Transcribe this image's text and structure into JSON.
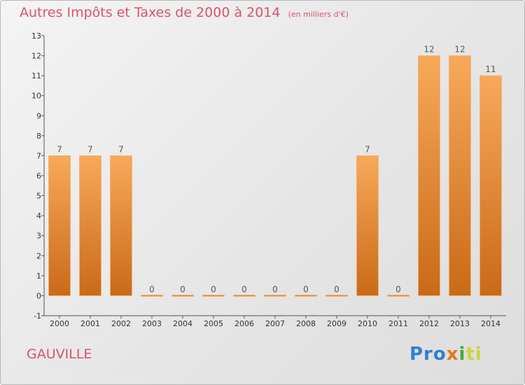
{
  "chart_data": {
    "type": "bar",
    "title": "Autres Impôts et Taxes de 2000 à 2014",
    "subtitle": "(en milliers d'€)",
    "categories": [
      "2000",
      "2001",
      "2002",
      "2003",
      "2004",
      "2005",
      "2006",
      "2007",
      "2008",
      "2009",
      "2010",
      "2011",
      "2012",
      "2013",
      "2014"
    ],
    "values": [
      7,
      7,
      7,
      0,
      0,
      0,
      0,
      0,
      0,
      0,
      7,
      0,
      12,
      12,
      11
    ],
    "ylim": [
      -1,
      13
    ],
    "yticks": [
      -1,
      0,
      1,
      2,
      3,
      4,
      5,
      6,
      7,
      8,
      9,
      10,
      11,
      12,
      13
    ],
    "grid": false,
    "bar_color": "#f28f2e"
  },
  "location": "GAUVILLE",
  "logo": {
    "p1": "Pro",
    "p2": "x",
    "p3": "i",
    "p4": "ti"
  }
}
